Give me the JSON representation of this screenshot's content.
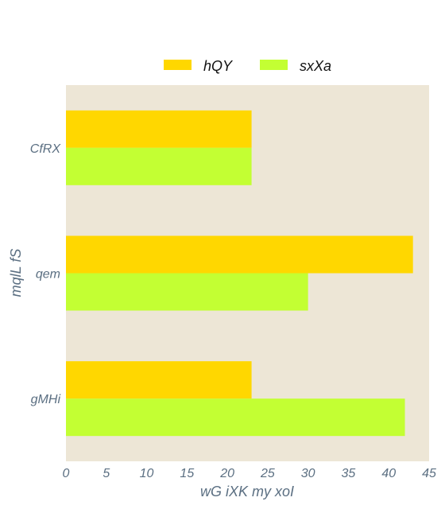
{
  "chart_data": {
    "type": "bar",
    "orientation": "horizontal",
    "categories": [
      "CfRX",
      "qem",
      "gMHi"
    ],
    "series": [
      {
        "name": "hQY",
        "values": [
          23,
          43,
          23
        ],
        "color": "#ffd700"
      },
      {
        "name": "sxXa",
        "values": [
          23,
          30,
          42
        ],
        "color": "#c3ff33"
      }
    ],
    "xlabel": "wG iXK  my xoI",
    "ylabel": "mqlL fS",
    "xlim": [
      0,
      45
    ],
    "xticks": [
      0,
      5,
      10,
      15,
      20,
      25,
      30,
      35,
      40,
      45
    ],
    "grid": false,
    "legend_position": "top-center",
    "plot_background": "#ede6d6",
    "tick_color": "#5b6f82"
  }
}
